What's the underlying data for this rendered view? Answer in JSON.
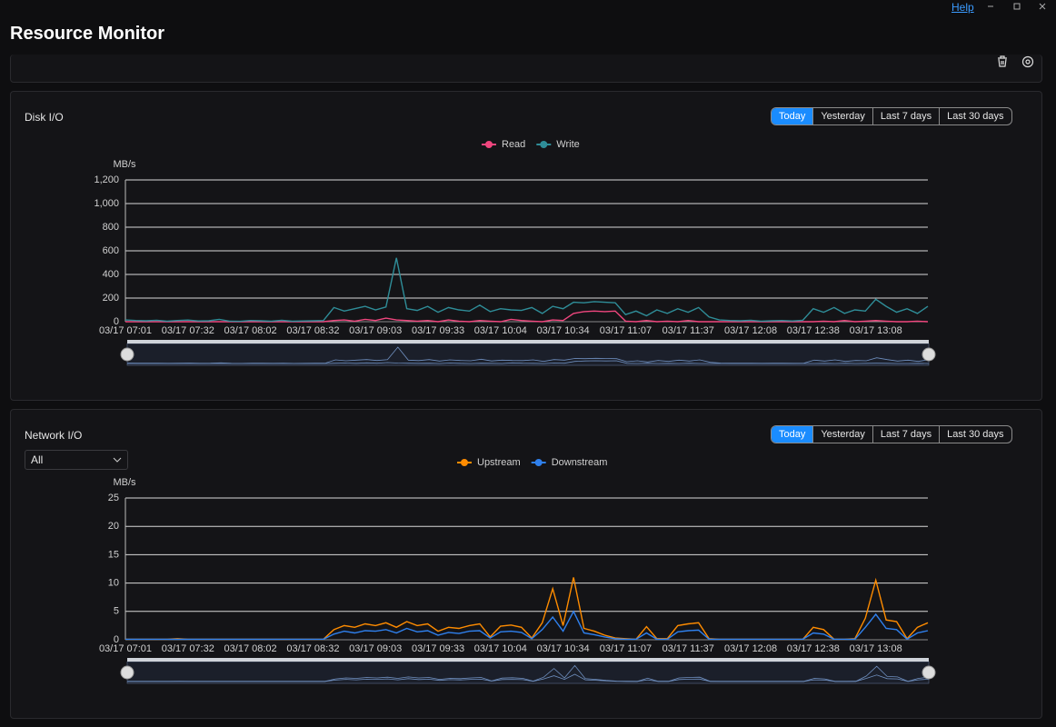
{
  "header": {
    "title": "Resource Monitor",
    "help": "Help"
  },
  "panels": [
    {
      "buttons": [
        "Today",
        "Yesterday",
        "Last 7 days",
        "Last 30 days"
      ]
    },
    {
      "buttons": [
        "Today",
        "Yesterday",
        "Last 7 days",
        "Last 30 days"
      ],
      "filter": "All"
    }
  ],
  "chart_data": [
    {
      "type": "line",
      "title": "Disk I/O",
      "y_label": "MB/s",
      "grid": true,
      "legend": "top",
      "categories": [
        "03/17 07:01",
        null,
        null,
        null,
        null,
        null,
        "03/17 07:32",
        null,
        null,
        null,
        null,
        null,
        "03/17 08:02",
        null,
        null,
        null,
        null,
        null,
        "03/17 08:32",
        null,
        null,
        null,
        null,
        null,
        "03/17 09:03",
        null,
        null,
        null,
        null,
        null,
        "03/17 09:33",
        null,
        null,
        null,
        null,
        null,
        "03/17 10:04",
        null,
        null,
        null,
        null,
        null,
        "03/17 10:34",
        null,
        null,
        null,
        null,
        null,
        "03/17 11:07",
        null,
        null,
        null,
        null,
        null,
        "03/17 11:37",
        null,
        null,
        null,
        null,
        null,
        "03/17 12:08",
        null,
        null,
        null,
        null,
        null,
        "03/17 12:38",
        null,
        null,
        null,
        null,
        null,
        "03/17 13:08",
        null,
        null,
        null,
        null,
        null
      ],
      "ylim": [
        0,
        1200
      ],
      "yticks": [
        0,
        200,
        400,
        600,
        800,
        {
          "value": 1000,
          "label": "1,000"
        },
        {
          "value": 1200,
          "label": "1,200"
        }
      ],
      "series": [
        {
          "name": "Read",
          "color": "#f0467e",
          "values": [
            0,
            0,
            0,
            0,
            0,
            0,
            0,
            0,
            0,
            0,
            0,
            0,
            0,
            0,
            0,
            0,
            0,
            0,
            0,
            0,
            10,
            15,
            5,
            20,
            10,
            30,
            15,
            10,
            5,
            10,
            0,
            15,
            5,
            0,
            10,
            5,
            0,
            20,
            10,
            5,
            0,
            15,
            10,
            70,
            85,
            90,
            85,
            90,
            5,
            0,
            10,
            0,
            5,
            0,
            10,
            0,
            0,
            0,
            0,
            0,
            0,
            0,
            0,
            0,
            0,
            0,
            0,
            5,
            0,
            10,
            0,
            5,
            10,
            5,
            0,
            0,
            5,
            0
          ]
        },
        {
          "name": "Write",
          "color": "#2f8d98",
          "values": [
            15,
            10,
            8,
            12,
            5,
            10,
            14,
            6,
            8,
            20,
            5,
            3,
            10,
            8,
            5,
            12,
            4,
            6,
            8,
            10,
            120,
            90,
            110,
            130,
            100,
            125,
            540,
            110,
            95,
            130,
            80,
            120,
            100,
            90,
            140,
            85,
            110,
            100,
            95,
            120,
            70,
            130,
            110,
            165,
            160,
            170,
            165,
            160,
            60,
            90,
            50,
            100,
            70,
            110,
            80,
            120,
            40,
            15,
            10,
            8,
            12,
            5,
            8,
            10,
            6,
            12,
            110,
            80,
            120,
            70,
            100,
            90,
            190,
            130,
            80,
            110,
            70,
            130
          ]
        }
      ]
    },
    {
      "type": "line",
      "title": "Network I/O",
      "y_label": "MB/s",
      "grid": true,
      "legend": "top",
      "categories": [
        "03/17 07:01",
        null,
        null,
        null,
        null,
        null,
        "03/17 07:32",
        null,
        null,
        null,
        null,
        null,
        "03/17 08:02",
        null,
        null,
        null,
        null,
        null,
        "03/17 08:32",
        null,
        null,
        null,
        null,
        null,
        "03/17 09:03",
        null,
        null,
        null,
        null,
        null,
        "03/17 09:33",
        null,
        null,
        null,
        null,
        null,
        "03/17 10:04",
        null,
        null,
        null,
        null,
        null,
        "03/17 10:34",
        null,
        null,
        null,
        null,
        null,
        "03/17 11:07",
        null,
        null,
        null,
        null,
        null,
        "03/17 11:37",
        null,
        null,
        null,
        null,
        null,
        "03/17 12:08",
        null,
        null,
        null,
        null,
        null,
        "03/17 12:38",
        null,
        null,
        null,
        null,
        null,
        "03/17 13:08",
        null,
        null,
        null,
        null,
        null
      ],
      "ylim": [
        0,
        25
      ],
      "yticks": [
        0,
        5,
        10,
        15,
        20,
        25
      ],
      "series": [
        {
          "name": "Upstream",
          "color": "#ff8c00",
          "values": [
            0.1,
            0.1,
            0.1,
            0.1,
            0.1,
            0.2,
            0.1,
            0.1,
            0.1,
            0.1,
            0.1,
            0.1,
            0.1,
            0.1,
            0.1,
            0.1,
            0.1,
            0.1,
            0.1,
            0.1,
            1.8,
            2.5,
            2.2,
            2.8,
            2.5,
            3,
            2.2,
            3.2,
            2.5,
            2.8,
            1.5,
            2.2,
            2,
            2.5,
            2.8,
            0.5,
            2.4,
            2.6,
            2.2,
            0.3,
            3,
            9,
            2.5,
            11,
            2,
            1.5,
            0.8,
            0.3,
            0.2,
            0.1,
            2.3,
            0.2,
            0.2,
            2.5,
            2.8,
            3,
            0.2,
            0.1,
            0.1,
            0.1,
            0.1,
            0.1,
            0.1,
            0.1,
            0.1,
            0.1,
            2.2,
            1.8,
            0.1,
            0.1,
            0.2,
            3.8,
            10.5,
            3.5,
            3.2,
            0.2,
            2.2,
            3
          ]
        },
        {
          "name": "Downstream",
          "color": "#2f80ed",
          "values": [
            0.1,
            0.1,
            0.1,
            0.1,
            0.1,
            0.1,
            0.1,
            0.1,
            0.1,
            0.1,
            0.1,
            0.1,
            0.1,
            0.1,
            0.1,
            0.1,
            0.1,
            0.1,
            0.1,
            0.1,
            1,
            1.5,
            1.2,
            1.6,
            1.5,
            1.8,
            1.2,
            2,
            1.4,
            1.6,
            0.8,
            1.3,
            1.1,
            1.5,
            1.6,
            0.3,
            1.4,
            1.5,
            1.3,
            0.2,
            1.8,
            4,
            1.5,
            5,
            1.2,
            0.9,
            0.5,
            0.2,
            0.1,
            0.1,
            1.2,
            0.1,
            0.1,
            1.4,
            1.6,
            1.7,
            0.1,
            0.1,
            0.1,
            0.1,
            0.1,
            0.1,
            0.1,
            0.1,
            0.1,
            0.1,
            1.2,
            1,
            0.1,
            0.1,
            0.1,
            2.2,
            4.5,
            2,
            1.8,
            0.1,
            1.2,
            1.6
          ]
        }
      ]
    }
  ]
}
